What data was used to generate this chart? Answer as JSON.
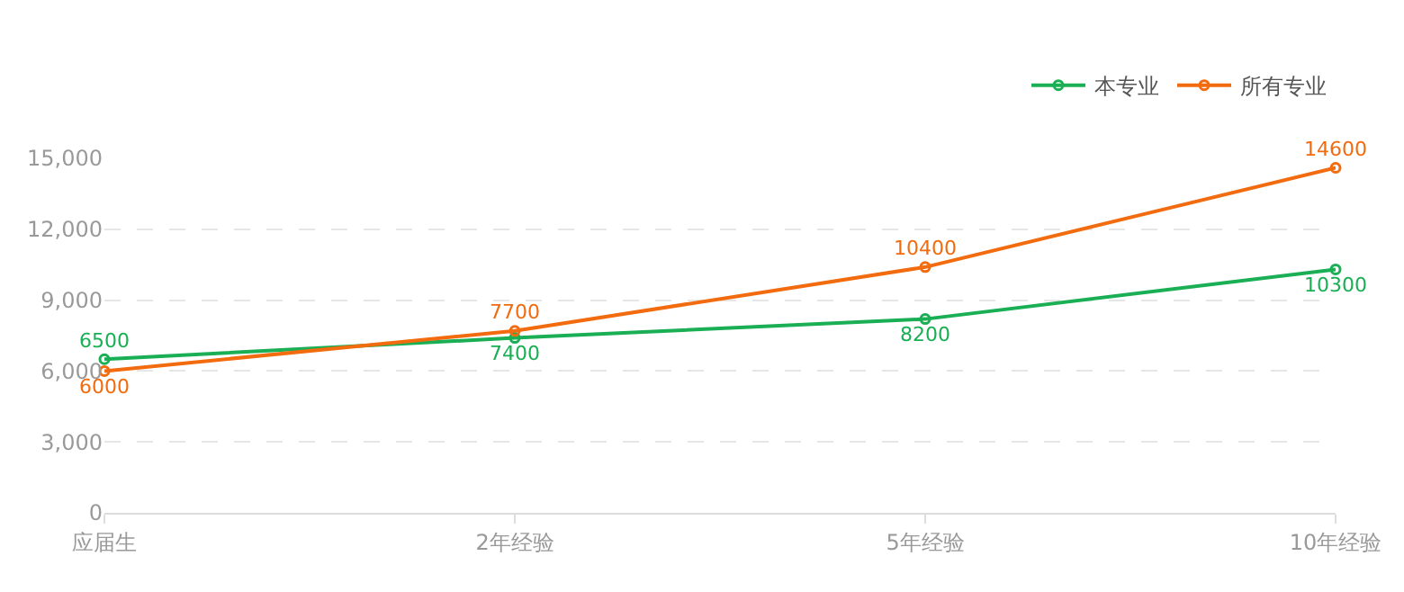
{
  "chart_data": {
    "type": "line",
    "categories": [
      "应届生",
      "2年经验",
      "5年经验",
      "10年经验"
    ],
    "series": [
      {
        "name": "本专业",
        "color": "#1aaf54",
        "values": [
          6500,
          7400,
          8200,
          10300
        ]
      },
      {
        "name": "所有专业",
        "color": "#f26b0f",
        "values": [
          6000,
          7700,
          10400,
          14600
        ]
      }
    ],
    "ylim": [
      0,
      15000
    ],
    "yticks": [
      0,
      {
        "value": 3000,
        "label": "3,000"
      },
      {
        "value": 6000,
        "label": "6,000"
      },
      {
        "value": 9000,
        "label": "9,000"
      },
      {
        "value": 12000,
        "label": "12,000"
      },
      {
        "value": 15000,
        "label": "15,000"
      }
    ],
    "grid": "y",
    "legend": "top right",
    "marker": "circle",
    "line_style": "solid",
    "data_labels": true
  }
}
